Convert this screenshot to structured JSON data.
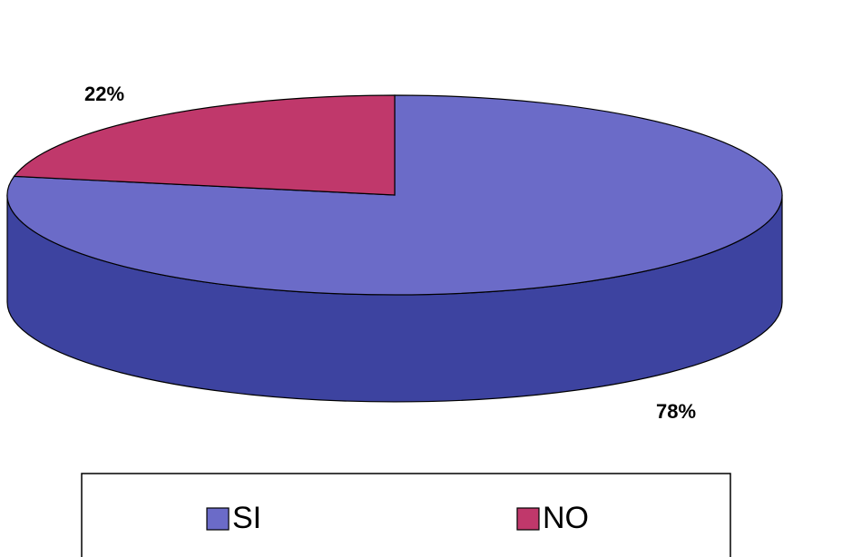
{
  "chart_data": {
    "type": "pie",
    "categories": [
      "SI",
      "NO"
    ],
    "values": [
      78,
      22
    ],
    "value_labels": [
      "78%",
      "22%"
    ],
    "colors": [
      "#6b6bc8",
      "#c0386b"
    ],
    "side_colors": [
      "#3d43a0",
      "#8a2450"
    ],
    "legend": "bottom"
  }
}
